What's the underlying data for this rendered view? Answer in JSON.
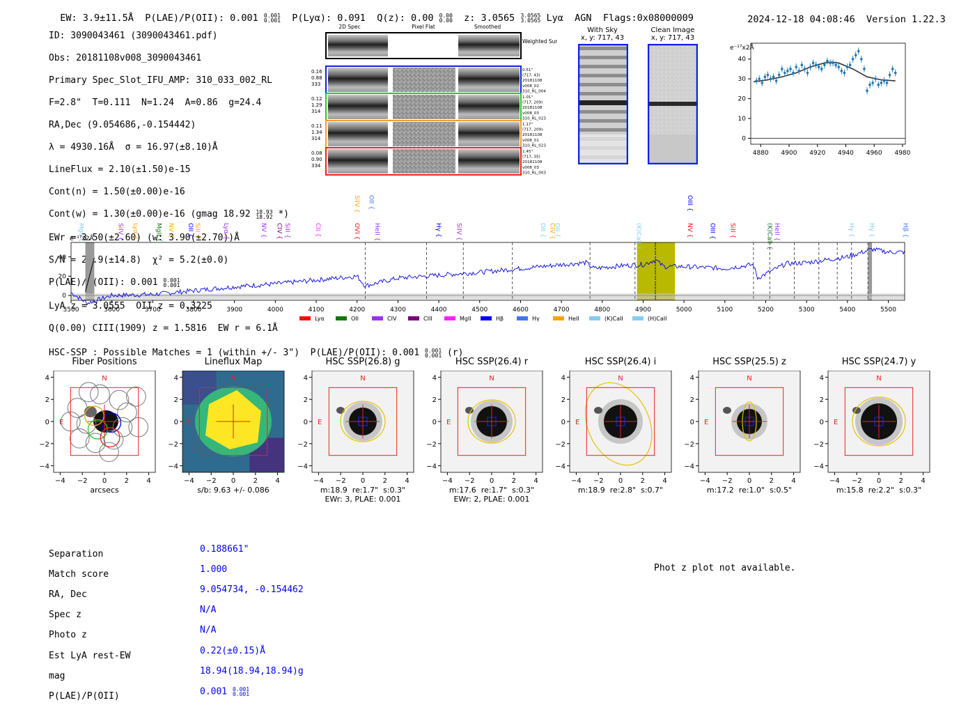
{
  "header": {
    "ew": "EW: 3.9±11.5Å",
    "plae_label": "P(LAE)/P(OII): 0.001",
    "plae_hi": "0.001",
    "plae_lo": "0.001",
    "plya": "P(Lyα): 0.091",
    "qz_label": "Q(z): 0.00",
    "qz_hi": "0.00",
    "qz_lo": "0.00",
    "z_label": "z: 3.0565",
    "z_hi": "3.0565",
    "z_lo": "3.0565",
    "line": "Lyα",
    "agn": "AGN",
    "flags": "Flags:0x08000009",
    "timestamp": "2024-12-18 04:08:46",
    "version": "Version 1.22.3"
  },
  "info": {
    "id": "ID: 3090043461 (3090043461.pdf)",
    "obs": "Obs: 20181108v008_3090043461",
    "primary": "Primary Spec_Slot_IFU_AMP: 310_033_002_RL",
    "fparams": "F=2.8\"  T=0.111  N=1.24  A=0.86  g=24.4",
    "radec": "RA,Dec (9.054686,-0.154442)",
    "lambda": "λ = 4930.16Å  σ = 16.97(±8.10)Å",
    "lineflux": "LineFlux = 2.10(±1.50)e-15",
    "contn": "Cont(n) = 1.50(±0.00)e-16",
    "contw": "Cont(w) = 1.30(±0.00)e-16 (gmag 18.92",
    "contw_hi": "18.93",
    "contw_lo": "18.92",
    "contw_end": " *)",
    "ewr": "EWr = 3.50(±2.60) (w: 3.90(±2.70))Å",
    "sn": "S/N = 20.9(±14.8)  χ² = 5.2(±0.0)",
    "plae": "P(LAE)/P(OII): 0.001",
    "plae_hi": "0.001",
    "plae_lo": "0.001",
    "lyaz": "LyA z = 3.0555  OII z = 0.3225",
    "ciii": "Q(0.00) CIII(1909) z = 1.5816  EW r = 6.1Å"
  },
  "cutouts": {
    "col_headers": [
      "2D Spec",
      "Pixel Flat",
      "Smoothed"
    ],
    "weighted_sum": "Weighted Sum",
    "rows": [
      {
        "left": [
          "0.16",
          "0.88",
          "333"
        ],
        "right": [
          "0.51\"",
          "(717, 43)",
          "20181108",
          "v008_02",
          "310_RL_004"
        ],
        "color": "#1020e0"
      },
      {
        "left": [
          "0.12",
          "1.29",
          "314"
        ],
        "right": [
          "1.01\"",
          "(717, 209)",
          "20181108",
          "v008_03",
          "310_RL_023"
        ],
        "color": "#22cc22"
      },
      {
        "left": [
          "0.11",
          "1.34",
          "314"
        ],
        "right": [
          "1.17\"",
          "(717, 209)",
          "20181108",
          "v008_01",
          "310_RL_023"
        ],
        "color": "#f0a020"
      },
      {
        "left": [
          "0.08",
          "0.90",
          "334"
        ],
        "right": [
          "1.45\"",
          "(717, 35)",
          "20181108",
          "v008_03",
          "310_RL_003"
        ],
        "color": "#ee2020"
      }
    ]
  },
  "sky": {
    "with_sky": "With Sky",
    "with_sky_xy": "x, y: 717, 43",
    "clean": "Clean Image",
    "clean_xy": "x, y: 717, 43"
  },
  "zoom_chart": {
    "unit": "e⁻¹⁷x2Å",
    "x_ticks": [
      "4880",
      "4900",
      "4920",
      "4940",
      "4960",
      "4980"
    ],
    "y_ticks": [
      "0",
      "10",
      "20",
      "30",
      "40"
    ]
  },
  "spectrum": {
    "unit": "e⁻¹⁷x2Å",
    "x_ticks": [
      "3500",
      "3600",
      "3700",
      "3800",
      "3900",
      "4000",
      "4100",
      "4200",
      "4300",
      "4400",
      "4500",
      "4600",
      "4700",
      "4800",
      "4900",
      "5000",
      "5100",
      "5200",
      "5300",
      "5400",
      "5500"
    ],
    "y_ticks": [
      "0",
      "20",
      "40"
    ],
    "legend": [
      {
        "label": "Lyα",
        "color": "#ee1111"
      },
      {
        "label": "OII",
        "color": "#117711"
      },
      {
        "label": "CIV",
        "color": "#9933ee"
      },
      {
        "label": "CIII",
        "color": "#770077"
      },
      {
        "label": "MgII",
        "color": "#ff22ff"
      },
      {
        "label": "Hβ",
        "color": "#0000ee"
      },
      {
        "label": "Hγ",
        "color": "#4477ee"
      },
      {
        "label": "HeII",
        "color": "#ffa500"
      },
      {
        "label": "(K)CaII",
        "color": "#88ccee"
      },
      {
        "label": "(H)CaII",
        "color": "#88ccee"
      }
    ],
    "lines": [
      {
        "label": "MgII",
        "color": "#88ccee",
        "x": 3515,
        "hi": false
      },
      {
        "label": "SiIV",
        "color": "#9933ee",
        "x": 3612,
        "hi": false
      },
      {
        "label": "Lyα",
        "color": "#ffa500",
        "x": 3648,
        "hi": false
      },
      {
        "label": "MgII",
        "color": "#117711",
        "x": 3705,
        "hi": false
      },
      {
        "label": "NV",
        "color": "#ffa500",
        "x": 3735,
        "hi": false
      },
      {
        "label": "OII",
        "color": "#0000ee",
        "x": 3783,
        "hi": false
      },
      {
        "label": "SiII",
        "color": "#ffa500",
        "x": 3800,
        "hi": false
      },
      {
        "label": "Lyα",
        "color": "#9933ee",
        "x": 3870,
        "hi": false
      },
      {
        "label": "NV",
        "color": "#9933ee",
        "x": 3962,
        "hi": false
      },
      {
        "label": "CIV",
        "color": "#770077",
        "x": 4000,
        "hi": false
      },
      {
        "label": "SiII",
        "color": "#9933ee",
        "x": 4020,
        "hi": false
      },
      {
        "label": "CII",
        "color": "#ff22ff",
        "x": 4095,
        "hi": false
      },
      {
        "label": "OVI",
        "color": "#ee1111",
        "x": 4190,
        "hi": false
      },
      {
        "label": "SiIV",
        "color": "#ffa500",
        "x": 4190,
        "hi": true
      },
      {
        "label": "OII",
        "color": "#4477ee",
        "x": 4225,
        "hi": true
      },
      {
        "label": "HeII",
        "color": "#9933ee",
        "x": 4240,
        "hi": false
      },
      {
        "label": "Hγ",
        "color": "#0000ee",
        "x": 4390,
        "hi": false
      },
      {
        "label": "SiIV",
        "color": "#9933ee",
        "x": 4440,
        "hi": false
      },
      {
        "label": "OII",
        "color": "#88ccee",
        "x": 4645,
        "hi": false
      },
      {
        "label": "CIV",
        "color": "#ffa500",
        "x": 4668,
        "hi": false
      },
      {
        "label": "OII",
        "color": "#88ccee",
        "x": 4680,
        "hi": false
      },
      {
        "label": "(K)CaII",
        "color": "#88ccee",
        "x": 4880,
        "hi": false
      },
      {
        "label": "NV",
        "color": "#ee1111",
        "x": 5005,
        "hi": false
      },
      {
        "label": "OIII",
        "color": "#0000ee",
        "x": 5005,
        "hi": true
      },
      {
        "label": "OIII",
        "color": "#0000ee",
        "x": 5060,
        "hi": false
      },
      {
        "label": "SiII",
        "color": "#ee1111",
        "x": 5110,
        "hi": false
      },
      {
        "label": "(K)CaII",
        "color": "#117711",
        "x": 5200,
        "hi": false
      },
      {
        "label": "HeII",
        "color": "#9933ee",
        "x": 5218,
        "hi": false
      },
      {
        "label": "Hγ",
        "color": "#88ccee",
        "x": 5400,
        "hi": false
      },
      {
        "label": "Hγ",
        "color": "#88ccee",
        "x": 5450,
        "hi": false
      },
      {
        "label": "Hβ",
        "color": "#4477ee",
        "x": 5532,
        "hi": false
      }
    ]
  },
  "hsc": {
    "title": "HSC-SSP : Possible Matches = 1 (within +/- 3\")  P(LAE)/P(OII): 0.001",
    "title_hi": "0.001",
    "title_lo": "0.001",
    "title_end": " (r)",
    "panels": [
      {
        "title": "Fiber Positions",
        "caption": [
          "arcsecs"
        ]
      },
      {
        "title": "Lineflux Map",
        "caption": [
          "s/b: 9.63 +/- 0.086"
        ]
      },
      {
        "title": "HSC SSP(26.8) g",
        "caption": [
          "m:18.9  re:1.7\"  s:0.3\"",
          "EWr: 3, PLAE: 0.001"
        ]
      },
      {
        "title": "HSC SSP(26.4) r",
        "caption": [
          "m:17.6  re:1.7\"  s:0.3\"",
          "EWr: 2, PLAE: 0.001"
        ]
      },
      {
        "title": "HSC SSP(26.4) i",
        "caption": [
          "m:18.9  re:2.8\"  s:0.7\""
        ]
      },
      {
        "title": "HSC SSP(25.5) z",
        "caption": [
          "m:17.2  re:1.0\"  s:0.5\""
        ]
      },
      {
        "title": "HSC SSP(24.7) y",
        "caption": [
          "m:15.8  re:2.2\"  s:0.3\""
        ]
      }
    ],
    "axis_ticks": [
      "−4",
      "−2",
      "0",
      "2",
      "4"
    ],
    "north": "N",
    "east": "E"
  },
  "match": {
    "labels": [
      "Separation",
      "Match score",
      "RA, Dec",
      "Spec z",
      "Photo z",
      "Est LyA rest-EW",
      "mag",
      "P(LAE)/P(OII)"
    ],
    "values": [
      "0.188661\"",
      "1.000",
      "9.054734, -0.154462",
      "N/A",
      "N/A",
      "0.22(±0.15)Å",
      "18.94(18.94,18.94)g",
      "0.001"
    ],
    "plae_hi": "0.001",
    "plae_lo": "0.001"
  },
  "photz": "Phot z plot not available.",
  "chart_data": [
    {
      "type": "line",
      "title": "",
      "ylabel": "e⁻¹⁷x2Å",
      "xlim": [
        4873,
        4982
      ],
      "ylim": [
        -3,
        48
      ],
      "series": [
        {
          "name": "fit",
          "x": [
            4875,
            4885,
            4895,
            4905,
            4915,
            4925,
            4930,
            4935,
            4945,
            4955,
            4965,
            4975
          ],
          "values": [
            28.5,
            29.5,
            31,
            33,
            36,
            38,
            38.5,
            38,
            35,
            31,
            29.5,
            29
          ]
        },
        {
          "name": "data",
          "x": [
            4877,
            4879,
            4881,
            4883,
            4885,
            4887,
            4889,
            4891,
            4893,
            4895,
            4897,
            4899,
            4901,
            4903,
            4905,
            4907,
            4909,
            4911,
            4913,
            4915,
            4917,
            4919,
            4921,
            4923,
            4925,
            4927,
            4929,
            4931,
            4933,
            4935,
            4937,
            4939,
            4941,
            4943,
            4945,
            4947,
            4949,
            4951,
            4953,
            4955,
            4957,
            4959,
            4961,
            4963,
            4965,
            4967,
            4969,
            4971,
            4973,
            4975
          ],
          "values": [
            29,
            30,
            28,
            31,
            32,
            30,
            31,
            29,
            32,
            35,
            33,
            34,
            35,
            33,
            36,
            34,
            37,
            35,
            33,
            36,
            38,
            37,
            36,
            35,
            37,
            39,
            38,
            38,
            37,
            36,
            34,
            33,
            36,
            37,
            40,
            42,
            44,
            40,
            35,
            24,
            27,
            28,
            30,
            27,
            28,
            29,
            28,
            32,
            35,
            33
          ]
        }
      ]
    },
    {
      "type": "line",
      "title": "",
      "ylabel": "e⁻¹⁷x2Å",
      "xlim": [
        3500,
        5540
      ],
      "ylim": [
        -5,
        55
      ],
      "series": [
        {
          "name": "flux",
          "x": [
            3500,
            3540,
            3600,
            3700,
            3800,
            3900,
            4000,
            4100,
            4200,
            4220,
            4300,
            4400,
            4500,
            4600,
            4700,
            4760,
            4780,
            4850,
            4900,
            4930,
            4950,
            5000,
            5100,
            5170,
            5180,
            5250,
            5300,
            5400,
            5460,
            5500,
            5540
          ],
          "values": [
            3,
            -8,
            0,
            1,
            5,
            9,
            12,
            16,
            20,
            10,
            18,
            21,
            24,
            28,
            32,
            34,
            28,
            31,
            32,
            37,
            30,
            30,
            28,
            32,
            18,
            33,
            34,
            40,
            48,
            45,
            45
          ]
        }
      ]
    }
  ]
}
